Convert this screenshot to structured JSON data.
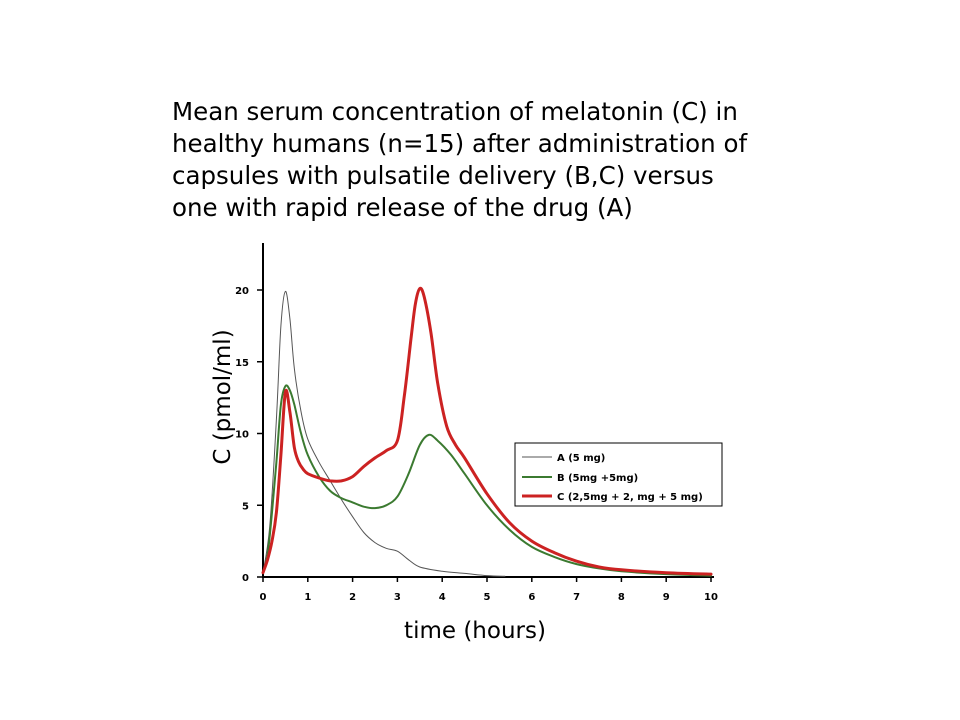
{
  "title_lines": [
    "Mean serum concentration of melatonin (C) in",
    "healthy humans (n=15) after administration of",
    "capsules with pulsatile delivery (B,C) versus",
    "one with rapid release of the drug (A)"
  ],
  "chart_data": {
    "type": "line",
    "title": "Mean serum concentration of melatonin (C) in healthy humans (n=15) after administration of capsules with pulsatile delivery (B,C) versus one with rapid release of the drug (A)",
    "xlabel": "time (hours)",
    "ylabel": "C (pmol/ml)",
    "xlim": [
      0,
      10
    ],
    "ylim": [
      0,
      22
    ],
    "xticks": [
      0,
      1,
      2,
      3,
      4,
      5,
      6,
      7,
      8,
      9,
      10
    ],
    "yticks": [
      0,
      5,
      10,
      15,
      20
    ],
    "grid": false,
    "legend_position": "right",
    "series": [
      {
        "name": "A (5 mg)",
        "color": "#555555",
        "x": [
          0,
          0.15,
          0.3,
          0.4,
          0.5,
          0.6,
          0.7,
          0.85,
          1.0,
          1.25,
          1.5,
          1.75,
          2.0,
          2.25,
          2.5,
          2.75,
          3.0,
          3.25,
          3.5,
          4.0,
          4.5,
          5.0,
          5.4
        ],
        "y": [
          0.3,
          3.5,
          11.0,
          17.5,
          19.9,
          18.0,
          14.5,
          11.5,
          9.6,
          8.0,
          6.7,
          5.4,
          4.2,
          3.1,
          2.4,
          2.0,
          1.8,
          1.2,
          0.7,
          0.4,
          0.25,
          0.1,
          0.05
        ]
      },
      {
        "name": "B (5mg +5mg)",
        "color": "#3b7a30",
        "x": [
          0,
          0.1,
          0.2,
          0.3,
          0.4,
          0.5,
          0.6,
          0.7,
          0.85,
          1.0,
          1.25,
          1.5,
          1.75,
          2.0,
          2.25,
          2.5,
          2.75,
          3.0,
          3.25,
          3.5,
          3.7,
          3.9,
          4.2,
          4.5,
          5.0,
          5.5,
          6.0,
          6.5,
          7.0,
          7.5,
          8.0,
          9.0,
          10.0
        ],
        "y": [
          0.3,
          1.5,
          4.5,
          8.0,
          12.0,
          13.3,
          13.0,
          12.0,
          10.0,
          8.5,
          7.0,
          6.0,
          5.5,
          5.2,
          4.9,
          4.8,
          5.0,
          5.6,
          7.2,
          9.2,
          9.9,
          9.5,
          8.5,
          7.2,
          5.0,
          3.3,
          2.1,
          1.4,
          0.9,
          0.6,
          0.4,
          0.2,
          0.1
        ]
      },
      {
        "name": "C (2,5mg + 2, mg + 5 mg)",
        "color": "#cc2222",
        "x": [
          0,
          0.1,
          0.2,
          0.3,
          0.4,
          0.5,
          0.6,
          0.7,
          0.8,
          0.9,
          1.0,
          1.25,
          1.5,
          1.75,
          2.0,
          2.25,
          2.5,
          2.75,
          3.0,
          3.15,
          3.3,
          3.4,
          3.5,
          3.6,
          3.75,
          3.9,
          4.1,
          4.3,
          4.5,
          5.0,
          5.5,
          6.0,
          6.5,
          7.0,
          7.5,
          8.0,
          9.0,
          10.0
        ],
        "y": [
          0.3,
          1.2,
          2.5,
          4.5,
          8.5,
          12.9,
          11.5,
          9.0,
          8.0,
          7.5,
          7.2,
          6.9,
          6.7,
          6.7,
          7.0,
          7.7,
          8.3,
          8.8,
          9.5,
          12.5,
          16.5,
          19.0,
          20.1,
          19.5,
          17.0,
          13.5,
          10.5,
          9.2,
          8.3,
          5.8,
          3.8,
          2.5,
          1.7,
          1.1,
          0.7,
          0.5,
          0.3,
          0.2
        ]
      }
    ]
  }
}
